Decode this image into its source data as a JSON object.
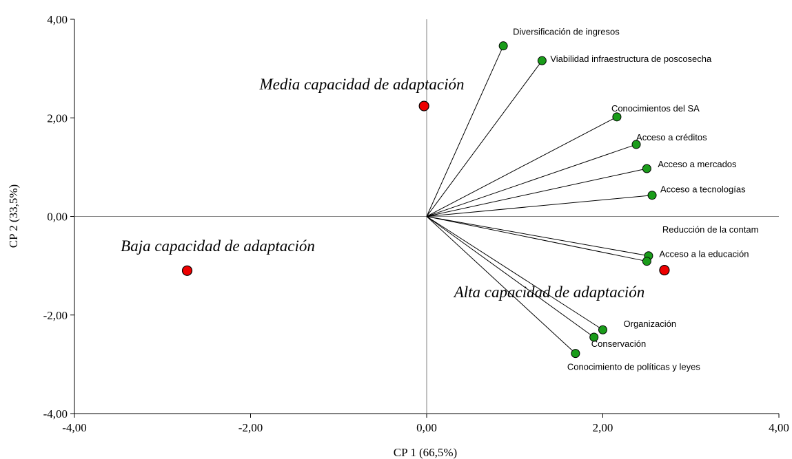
{
  "chart_data": {
    "type": "scatter",
    "title": "",
    "xlabel": "CP 1 (66,5%)",
    "ylabel": "CP 2 (33,5%)",
    "xlim": [
      -4,
      4
    ],
    "ylim": [
      -4,
      4
    ],
    "xticks": [
      "-4,00",
      "-2,00",
      "0,00",
      "2,00",
      "4,00"
    ],
    "yticks": [
      "-4,00",
      "-2,00",
      "0,00",
      "2,00",
      "4,00"
    ],
    "grid": false,
    "origin_lines": true,
    "colors": {
      "variables": "#1a9c1a",
      "groups": "#ee0000",
      "axes": "#808080",
      "vectors": "#000000"
    },
    "variables": [
      {
        "label": "Diversificación de ingresos",
        "x": 0.87,
        "y": 3.46
      },
      {
        "label": "Viabilidad infraestructura de poscosecha",
        "x": 1.31,
        "y": 3.16
      },
      {
        "label": "Conocimientos del SA",
        "x": 2.16,
        "y": 2.02
      },
      {
        "label": "Acceso a créditos",
        "x": 2.38,
        "y": 1.46
      },
      {
        "label": "Acceso a mercados",
        "x": 2.5,
        "y": 0.97
      },
      {
        "label": "Acceso a tecnologías",
        "x": 2.56,
        "y": 0.43
      },
      {
        "label": "Reducción de la contam",
        "x": 2.52,
        "y": -0.8
      },
      {
        "label": "Acceso a la educación",
        "x": 2.5,
        "y": -0.91
      },
      {
        "label": "Organización",
        "x": 2.0,
        "y": -2.3
      },
      {
        "label": "Conservación",
        "x": 1.9,
        "y": -2.45
      },
      {
        "label": "Conocimiento de políticas y leyes",
        "x": 1.69,
        "y": -2.78
      }
    ],
    "groups": [
      {
        "label": "Media capacidad de adaptación",
        "x": -0.03,
        "y": 2.24
      },
      {
        "label": "Baja capacidad de adaptación",
        "x": -2.72,
        "y": -1.1
      },
      {
        "label": "Alta capacidad de adaptación",
        "x": 2.7,
        "y": -1.09
      }
    ]
  }
}
